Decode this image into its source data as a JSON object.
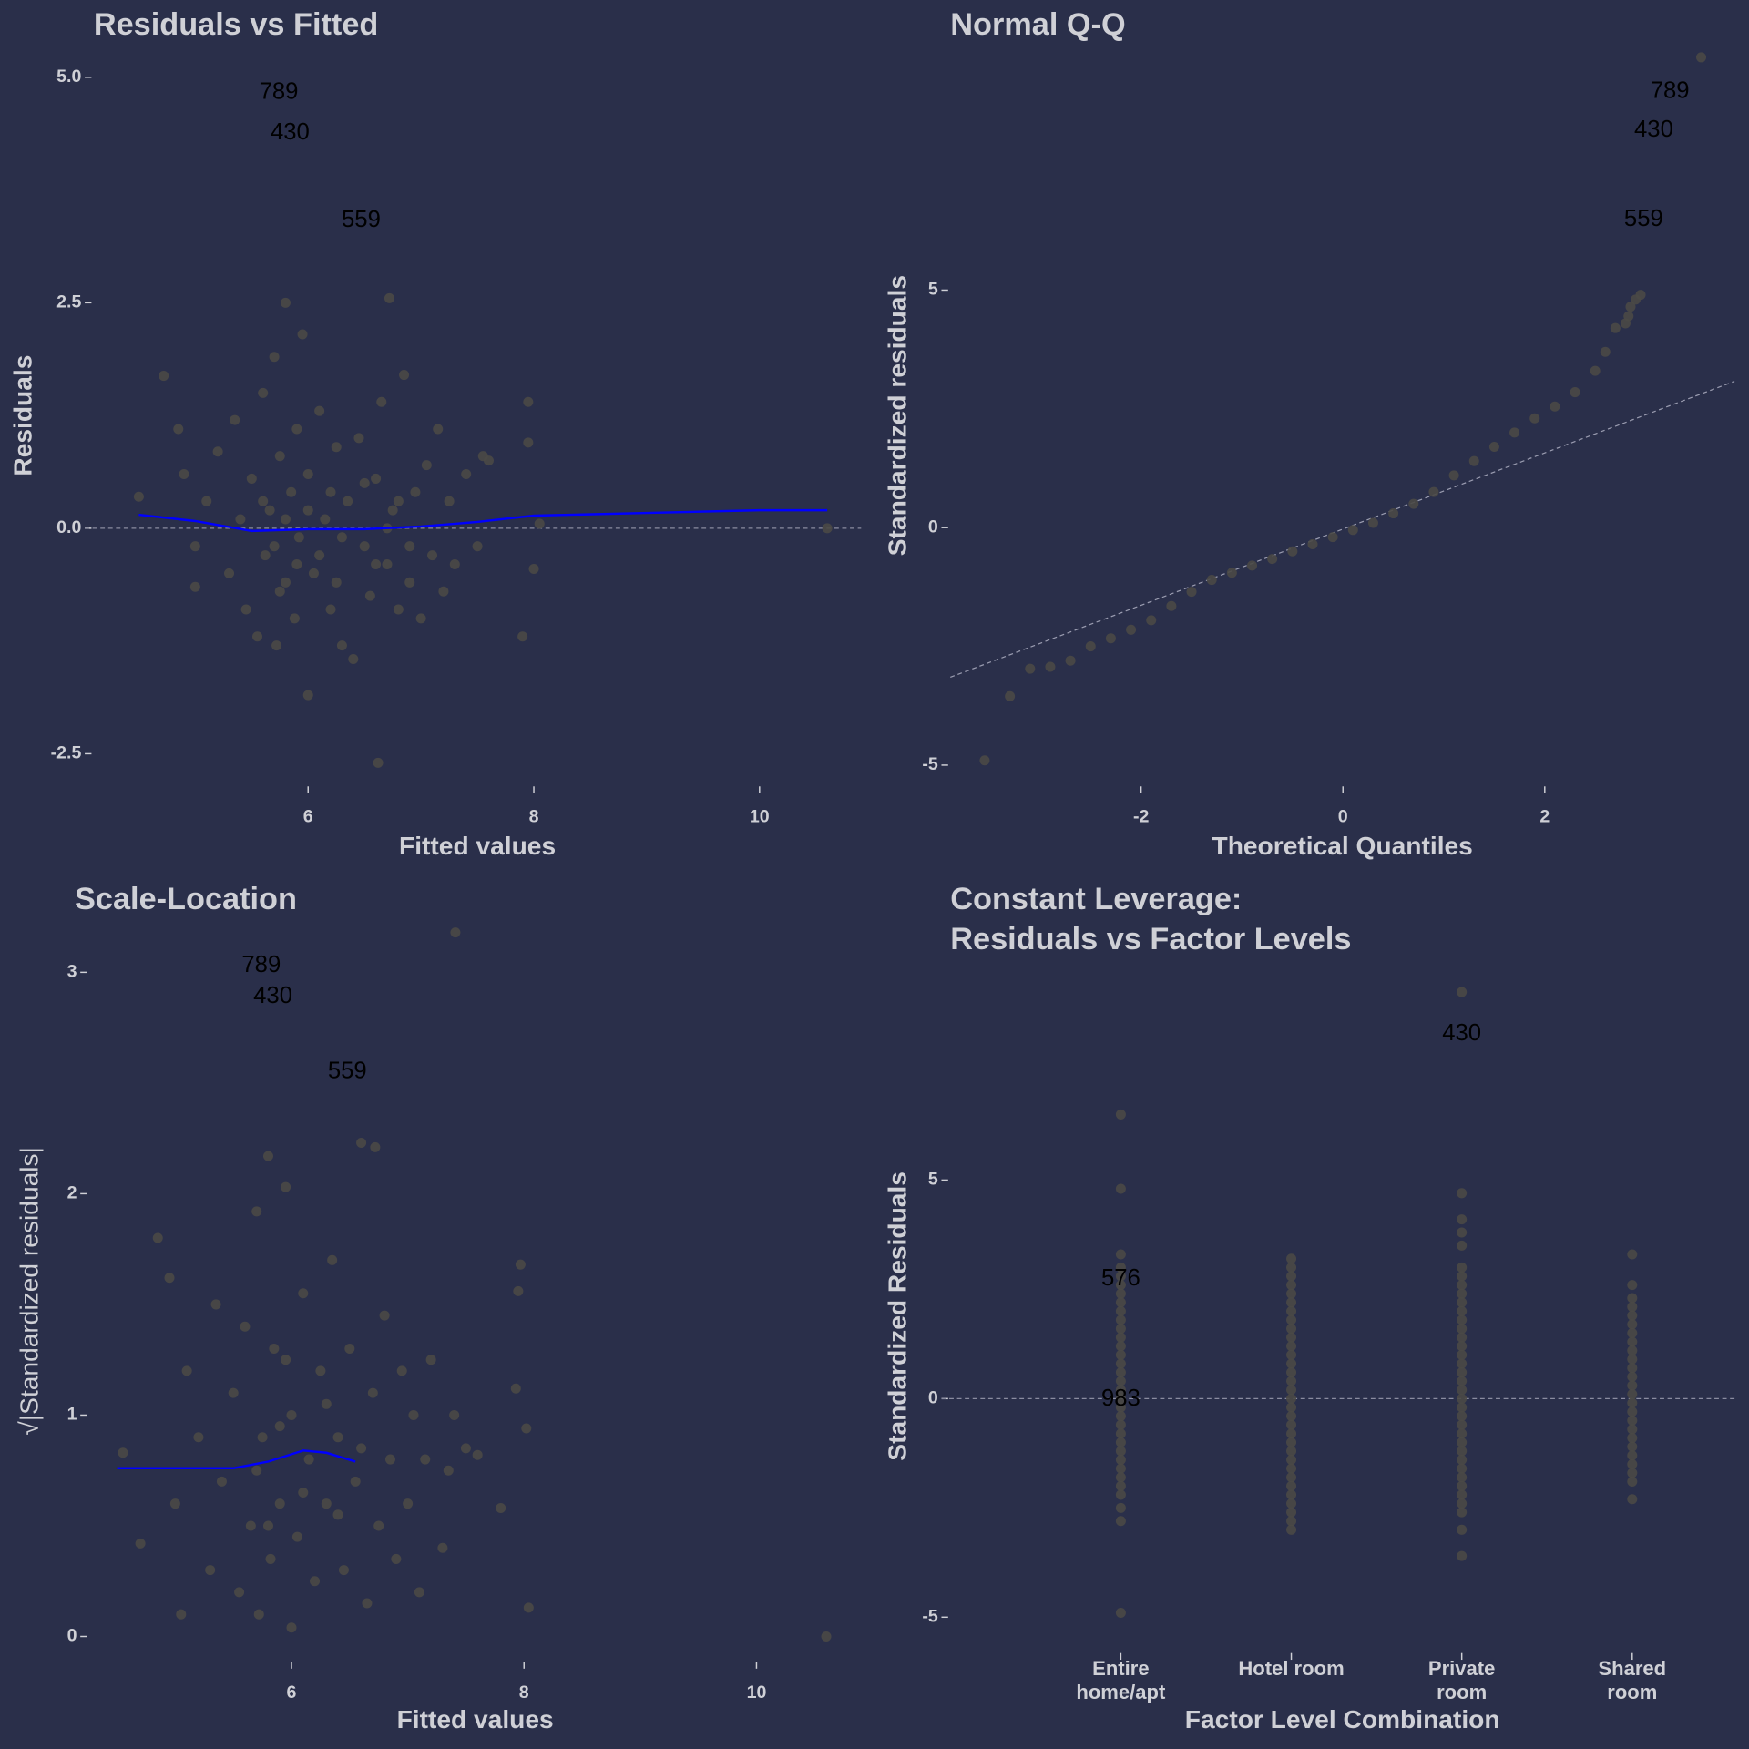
{
  "chart_data": [
    {
      "type": "scatter",
      "title": "Residuals vs Fitted",
      "xlabel": "Fitted values",
      "ylabel": "Residuals",
      "color": "#4a4946",
      "xlim": [
        4.1,
        10.9
      ],
      "ylim": [
        -2.8,
        5.3
      ],
      "xticks": [
        6,
        8,
        10
      ],
      "yticks": [
        -2.5,
        {
          "value": 0,
          "label": "0.0"
        },
        2.5,
        {
          "value": 5,
          "label": "5.0"
        }
      ],
      "x": [
        4.5,
        4.72,
        4.85,
        4.9,
        5.0,
        5.0,
        5.1,
        5.2,
        5.3,
        5.35,
        5.4,
        5.45,
        5.5,
        5.55,
        5.6,
        5.62,
        5.66,
        5.7,
        5.72,
        5.75,
        5.8,
        5.8,
        5.85,
        5.88,
        5.9,
        5.92,
        5.95,
        6.0,
        6.0,
        6.05,
        6.1,
        6.15,
        6.2,
        6.25,
        6.3,
        6.35,
        6.4,
        6.45,
        6.5,
        6.55,
        6.6,
        6.62,
        6.65,
        6.7,
        6.72,
        6.75,
        6.8,
        6.85,
        6.9,
        6.95,
        7.0,
        7.05,
        7.1,
        7.15,
        7.2,
        7.25,
        7.3,
        7.4,
        7.5,
        7.55,
        7.6,
        7.9,
        7.95,
        8.0,
        8.05,
        7.95,
        10.6,
        5.6,
        5.7,
        5.8,
        5.9,
        6.0,
        6.1,
        6.2,
        6.3,
        6.5,
        6.6,
        6.7,
        6.8,
        6.9,
        5.75,
        6.25
      ],
      "values": [
        0.35,
        1.69,
        1.1,
        0.6,
        -0.2,
        -0.65,
        0.3,
        0.85,
        -0.5,
        1.2,
        0.1,
        -0.9,
        0.55,
        -1.2,
        1.5,
        -0.3,
        0.2,
        1.9,
        -1.3,
        0.8,
        -0.6,
        2.5,
        0.4,
        -1.0,
        1.1,
        -0.1,
        2.15,
        -1.85,
        0.6,
        -0.5,
        1.3,
        0.1,
        -0.9,
        0.9,
        -1.3,
        0.3,
        -1.45,
        1.0,
        -0.2,
        -0.75,
        0.55,
        -2.6,
        1.4,
        -0.4,
        2.55,
        0.2,
        -0.9,
        1.7,
        -0.6,
        0.4,
        -1.0,
        0.7,
        -0.3,
        1.1,
        -0.7,
        0.3,
        -0.4,
        0.6,
        -0.2,
        0.8,
        0.75,
        -1.2,
        1.4,
        -0.45,
        0.05,
        0.95,
        0.0,
        0.3,
        -0.2,
        0.1,
        -0.4,
        0.2,
        -0.3,
        0.4,
        -0.1,
        0.5,
        -0.4,
        0.0,
        0.3,
        -0.2,
        -0.7,
        -0.6
      ],
      "hline": 0,
      "smooth": {
        "color": "#0000ff",
        "x": [
          4.5,
          5.0,
          5.5,
          6.0,
          6.5,
          7.0,
          7.5,
          8.0,
          9.0,
          10.0,
          10.6
        ],
        "y": [
          0.15,
          0.08,
          -0.03,
          -0.01,
          -0.01,
          0.02,
          0.07,
          0.14,
          0.17,
          0.2,
          0.2
        ]
      },
      "point_labels": [
        {
          "label": "789",
          "x": 5.74,
          "y": 4.83
        },
        {
          "label": "430",
          "x": 5.84,
          "y": 4.38
        },
        {
          "label": "559",
          "x": 6.47,
          "y": 3.41
        }
      ]
    },
    {
      "type": "scatter",
      "title": "Normal Q-Q",
      "xlabel": "Theoretical Quantiles",
      "ylabel": "Standardized residuals",
      "color": "#4a4946",
      "xlim": [
        -3.89,
        3.88
      ],
      "ylim": [
        -5.33,
        10.05
      ],
      "xticks": [
        -2,
        0,
        2
      ],
      "yticks": [
        -5,
        0,
        5
      ],
      "x": [
        -3.55,
        -3.3,
        -3.1,
        -2.9,
        -2.7,
        -2.5,
        -2.3,
        -2.1,
        -1.9,
        -1.7,
        -1.5,
        -1.3,
        -1.1,
        -0.9,
        -0.7,
        -0.5,
        -0.3,
        -0.1,
        0.1,
        0.3,
        0.5,
        0.7,
        0.9,
        1.1,
        1.3,
        1.5,
        1.7,
        1.9,
        2.1,
        2.3,
        2.5,
        2.6,
        2.7,
        2.8,
        2.83,
        2.85,
        2.9,
        2.95,
        3.55
      ],
      "values": [
        -4.9,
        -3.55,
        -2.97,
        -2.93,
        -2.8,
        -2.5,
        -2.33,
        -2.15,
        -1.95,
        -1.65,
        -1.35,
        -1.1,
        -0.95,
        -0.8,
        -0.66,
        -0.5,
        -0.35,
        -0.2,
        -0.05,
        0.1,
        0.3,
        0.5,
        0.75,
        1.1,
        1.4,
        1.7,
        2.0,
        2.3,
        2.55,
        2.85,
        3.3,
        3.7,
        4.2,
        4.3,
        4.45,
        4.65,
        4.8,
        4.9,
        9.9
      ],
      "reference_line": {
        "x": [
          -3.89,
          3.88
        ],
        "y": [
          -3.15,
          3.08
        ]
      },
      "point_labels": [
        {
          "label": "789",
          "x": 3.24,
          "y": 9.18
        },
        {
          "label": "430",
          "x": 3.08,
          "y": 8.36
        },
        {
          "label": "559",
          "x": 2.98,
          "y": 6.48
        }
      ]
    },
    {
      "type": "scatter",
      "title": "Scale-Location",
      "xlabel": "Fitted values",
      "ylabel": "√|Standardized residuals|",
      "color": "#4a4946",
      "xlim": [
        4.26,
        10.9
      ],
      "ylim": [
        -0.09,
        3.21
      ],
      "xticks": [
        6,
        8,
        10
      ],
      "yticks": [
        0,
        1,
        2,
        3
      ],
      "x": [
        4.55,
        4.7,
        4.85,
        4.95,
        5.0,
        5.05,
        5.1,
        5.2,
        5.3,
        5.35,
        5.4,
        5.5,
        5.55,
        5.6,
        5.65,
        5.7,
        5.72,
        5.75,
        5.8,
        5.82,
        5.85,
        5.9,
        5.95,
        6.0,
        6.0,
        6.05,
        6.1,
        6.15,
        6.2,
        6.25,
        6.3,
        6.35,
        6.4,
        6.45,
        6.5,
        6.55,
        6.6,
        6.65,
        6.7,
        6.72,
        6.75,
        6.8,
        6.85,
        6.9,
        6.95,
        7.0,
        7.05,
        7.1,
        7.15,
        7.2,
        7.3,
        7.35,
        7.4,
        7.5,
        7.6,
        7.8,
        7.93,
        7.95,
        7.97,
        8.02,
        8.04,
        10.6,
        7.41,
        5.7,
        5.9,
        6.1,
        6.4,
        6.6,
        6.3,
        5.8,
        5.95
      ],
      "values": [
        0.83,
        0.42,
        1.8,
        1.62,
        0.6,
        0.1,
        1.2,
        0.9,
        0.3,
        1.5,
        0.7,
        1.1,
        0.2,
        1.4,
        0.5,
        1.92,
        0.1,
        0.9,
        2.17,
        0.35,
        1.3,
        0.6,
        2.03,
        0.04,
        1.0,
        0.45,
        1.55,
        0.8,
        0.25,
        1.2,
        0.6,
        1.7,
        0.9,
        0.3,
        1.3,
        0.7,
        2.23,
        0.15,
        1.1,
        2.21,
        0.5,
        1.45,
        0.8,
        0.35,
        1.2,
        0.6,
        1.0,
        0.2,
        0.8,
        1.25,
        0.4,
        0.75,
        1.0,
        0.85,
        0.82,
        0.58,
        1.12,
        1.56,
        1.68,
        0.94,
        0.13,
        0.0,
        3.18,
        0.75,
        0.95,
        0.65,
        0.55,
        0.85,
        1.05,
        0.5,
        1.25
      ],
      "smooth": {
        "color": "#0000ff",
        "x": [
          4.5,
          5.0,
          5.5,
          5.8,
          6.1,
          6.3,
          6.55
        ],
        "y": [
          0.76,
          0.76,
          0.76,
          0.79,
          0.84,
          0.83,
          0.79
        ]
      },
      "point_labels": [
        {
          "label": "789",
          "x": 5.74,
          "y": 3.03
        },
        {
          "label": "430",
          "x": 5.84,
          "y": 2.89
        },
        {
          "label": "559",
          "x": 6.48,
          "y": 2.55
        }
      ]
    },
    {
      "type": "strip",
      "title": "Constant Leverage:\nResiduals vs Factor Levels",
      "xlabel": "Factor Level Combination",
      "ylabel": "Standardized Residuals",
      "color": "#4a4946",
      "ylim": [
        -5.77,
        9.54
      ],
      "yticks": [
        -5,
        0,
        5
      ],
      "categories": [
        "Entire\nhome/apt",
        "Hotel room",
        "Private\nroom",
        "Shared\nroom"
      ],
      "values": [
        [
          -4.9,
          -2.8,
          -2.5,
          -2.2,
          -2.0,
          -1.8,
          -1.6,
          -1.4,
          -1.2,
          -1.0,
          -0.8,
          -0.6,
          -0.4,
          -0.2,
          0,
          0.2,
          0.4,
          0.6,
          0.8,
          1.0,
          1.2,
          1.4,
          1.6,
          1.8,
          2.0,
          2.2,
          2.4,
          2.6,
          2.8,
          3.0,
          3.3,
          4.8,
          6.5
        ],
        [
          -3.0,
          -2.8,
          -2.6,
          -2.4,
          -2.2,
          -2.0,
          -1.8,
          -1.6,
          -1.4,
          -1.2,
          -1.0,
          -0.8,
          -0.6,
          -0.4,
          -0.2,
          0,
          0.2,
          0.4,
          0.6,
          0.8,
          1.0,
          1.2,
          1.4,
          1.6,
          1.8,
          2.0,
          2.2,
          2.4,
          2.6,
          2.8,
          3.0,
          3.2
        ],
        [
          -3.6,
          -3.0,
          -2.6,
          -2.4,
          -2.2,
          -2.0,
          -1.8,
          -1.6,
          -1.4,
          -1.2,
          -1.0,
          -0.8,
          -0.6,
          -0.4,
          -0.2,
          0,
          0.2,
          0.4,
          0.6,
          0.8,
          1.0,
          1.2,
          1.4,
          1.6,
          1.8,
          2.0,
          2.2,
          2.4,
          2.6,
          2.8,
          3.0,
          3.5,
          3.8,
          4.1,
          4.7,
          9.3
        ],
        [
          -2.3,
          -1.9,
          -1.7,
          -1.5,
          -1.3,
          -1.1,
          -0.9,
          -0.7,
          -0.5,
          -0.3,
          -0.1,
          0.1,
          0.3,
          0.5,
          0.7,
          0.9,
          1.1,
          1.3,
          1.5,
          1.7,
          1.9,
          2.1,
          2.3,
          2.6,
          3.3
        ]
      ],
      "hline": 0,
      "point_labels": [
        {
          "label": "430",
          "category": "Private\nroom",
          "y": 8.34
        },
        {
          "label": "576",
          "category": "Entire\nhome/apt",
          "y": 2.73
        },
        {
          "label": "983",
          "category": "Entire\nhome/apt",
          "y": -0.02
        }
      ]
    }
  ]
}
